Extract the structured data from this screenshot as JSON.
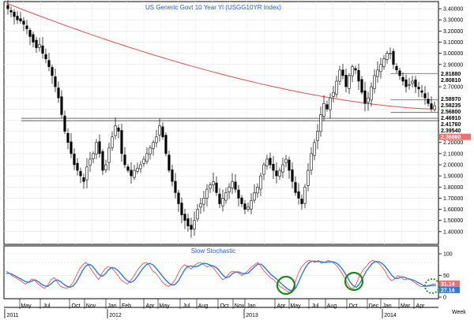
{
  "chart_data": [
    {
      "type": "candlestick",
      "title": "US Generic  Govt  10  Year  Yl  (USGG10YR Index)",
      "ylim": [
        1.3,
        3.45
      ],
      "y_ticks": [
        "3.40000",
        "3.30000",
        "3.20000",
        "3.10000",
        "3.00000",
        "2.90000",
        "2.80000",
        "2.70000",
        "2.60000",
        "2.50000",
        "2.40000",
        "2.30000",
        "2.20000",
        "2.10000",
        "2.00000",
        "1.90000",
        "1.80000",
        "1.70000",
        "1.60000",
        "1.50000",
        "1.40000"
      ],
      "price_tags": [
        {
          "label": "2.81880",
          "value": 2.8188,
          "color": "#ffffff",
          "text_color": "#000000"
        },
        {
          "label": "2.80810",
          "value": 2.8081,
          "color": "#ffffff",
          "text_color": "#000000"
        },
        {
          "label": "2.58970",
          "value": 2.5897,
          "color": "#ffffff",
          "text_color": "#000000"
        },
        {
          "label": "2.58235",
          "value": 2.58235,
          "color": "#ffffff",
          "text_color": "#000000"
        },
        {
          "label": "2.56800",
          "value": 2.568,
          "color": "#ffffff",
          "text_color": "#000000"
        },
        {
          "label": "2.46910",
          "value": 2.4691,
          "color": "#ffffff",
          "text_color": "#000000"
        },
        {
          "label": "2.41760",
          "value": 2.4176,
          "color": "#ffffff",
          "text_color": "#000000"
        },
        {
          "label": "2.39540",
          "value": 2.3954,
          "color": "#ffffff",
          "text_color": "#000000"
        },
        {
          "label": "2.36860",
          "value": 2.3686,
          "color": "#f07070",
          "text_color": "#ffffff"
        }
      ],
      "horizontal_lines": [
        {
          "value": 2.417,
          "x_start": 0.04,
          "x_end": 1.0
        },
        {
          "value": 2.395,
          "x_start": 0.04,
          "x_end": 1.0
        },
        {
          "value": 2.8188,
          "x_start": 0.89,
          "x_end": 1.0
        },
        {
          "value": 2.582,
          "x_start": 0.89,
          "x_end": 1.0
        },
        {
          "value": 2.469,
          "x_start": 0.89,
          "x_end": 1.0
        }
      ],
      "closes": [
        3.4,
        3.37,
        3.33,
        3.3,
        3.29,
        3.26,
        3.22,
        3.15,
        3.1,
        3.05,
        3.08,
        3.0,
        2.95,
        2.88,
        2.8,
        2.7,
        2.6,
        2.45,
        2.3,
        2.2,
        2.1,
        2.0,
        1.95,
        1.9,
        1.85,
        1.98,
        2.05,
        2.1,
        2.2,
        2.1,
        1.95,
        2.0,
        2.15,
        2.25,
        2.35,
        2.3,
        2.1,
        2.0,
        1.95,
        1.9,
        1.95,
        1.97,
        2.0,
        2.05,
        2.1,
        2.15,
        2.2,
        2.25,
        2.35,
        2.25,
        2.1,
        1.95,
        1.85,
        1.75,
        1.65,
        1.55,
        1.5,
        1.45,
        1.42,
        1.5,
        1.6,
        1.65,
        1.7,
        1.78,
        1.82,
        1.85,
        1.75,
        1.65,
        1.7,
        1.75,
        1.8,
        1.85,
        1.78,
        1.7,
        1.65,
        1.6,
        1.62,
        1.68,
        1.75,
        1.8,
        1.9,
        2.0,
        2.05,
        2.0,
        1.95,
        1.9,
        1.95,
        2.0,
        2.05,
        1.95,
        1.85,
        1.75,
        1.7,
        1.65,
        1.8,
        1.95,
        2.1,
        2.2,
        2.3,
        2.45,
        2.55,
        2.5,
        2.6,
        2.65,
        2.75,
        2.85,
        2.8,
        2.7,
        2.8,
        2.88,
        2.85,
        2.75,
        2.65,
        2.55,
        2.6,
        2.7,
        2.8,
        2.85,
        2.9,
        2.95,
        3.0,
        3.0,
        2.9,
        2.85,
        2.8,
        2.75,
        2.7,
        2.72,
        2.75,
        2.7,
        2.68,
        2.65,
        2.6,
        2.55,
        2.5,
        2.53
      ]
    },
    {
      "type": "line",
      "title": "Slow  Stochastic",
      "ylim": [
        0,
        100
      ],
      "y_ticks": [
        "100",
        "50",
        "0"
      ],
      "value_tags": [
        {
          "label": "31.14",
          "value": 31.14,
          "color": "#f07070"
        },
        {
          "label": "27.14",
          "value": 27.14,
          "color": "#2a7be0"
        }
      ],
      "series": [
        {
          "values": [
            60,
            55,
            48,
            45,
            40,
            35,
            30,
            35,
            42,
            38,
            30,
            25,
            20,
            28,
            40,
            45,
            35,
            25,
            22,
            20,
            25,
            35,
            50,
            65,
            75,
            80,
            72,
            60,
            50,
            40,
            55,
            65,
            70,
            68,
            60,
            50,
            40,
            35,
            30,
            38,
            48,
            60,
            70,
            78,
            80,
            72,
            60,
            55,
            45,
            35,
            28,
            25,
            30,
            40,
            55,
            68,
            75,
            70,
            65,
            72,
            78,
            80,
            75,
            70,
            72,
            68,
            58,
            48,
            40,
            45,
            55,
            60,
            58,
            55,
            50,
            55,
            62,
            70,
            75,
            80,
            70,
            60,
            52,
            45,
            40,
            32,
            25,
            20,
            15,
            10,
            20,
            40,
            60,
            72,
            80,
            85,
            83,
            80,
            85,
            78,
            80,
            85,
            82,
            78,
            70,
            60,
            48,
            35,
            22,
            20,
            32,
            50,
            62,
            70,
            80,
            85,
            82,
            78,
            70,
            60,
            45,
            38,
            42,
            50,
            45,
            40,
            42,
            40,
            35,
            30,
            25,
            24,
            26,
            28,
            30,
            31
          ]
        },
        {
          "values": [
            55,
            55,
            52,
            48,
            44,
            40,
            36,
            34,
            37,
            40,
            36,
            30,
            26,
            25,
            30,
            37,
            40,
            36,
            30,
            25,
            23,
            26,
            35,
            48,
            62,
            72,
            76,
            72,
            63,
            53,
            48,
            53,
            62,
            68,
            67,
            62,
            54,
            45,
            38,
            34,
            37,
            46,
            57,
            67,
            75,
            78,
            75,
            67,
            58,
            49,
            40,
            33,
            28,
            29,
            37,
            50,
            63,
            71,
            72,
            70,
            71,
            75,
            78,
            77,
            74,
            72,
            68,
            60,
            51,
            45,
            47,
            54,
            58,
            58,
            55,
            54,
            56,
            63,
            70,
            76,
            76,
            70,
            61,
            53,
            47,
            41,
            34,
            27,
            21,
            16,
            14,
            22,
            38,
            55,
            69,
            79,
            83,
            83,
            82,
            82,
            80,
            81,
            82,
            81,
            77,
            70,
            60,
            48,
            35,
            26,
            23,
            31,
            45,
            59,
            69,
            78,
            82,
            82,
            78,
            71,
            61,
            51,
            44,
            43,
            47,
            46,
            43,
            41,
            39,
            35,
            31,
            27,
            25,
            26,
            27,
            27
          ]
        }
      ]
    }
  ],
  "x_axis": {
    "months": [
      "May",
      "Jul",
      "Oct",
      "Nov",
      "Jan",
      "Feb",
      "Apr",
      "May",
      "Jul",
      "Aug",
      "Oct",
      "Nov",
      "Jan",
      "Apr",
      "May",
      "Jul",
      "Aug",
      "Oct",
      "Dec",
      "Jan",
      "Mar",
      "Apr"
    ],
    "years": [
      "2011",
      "2012",
      "2013",
      "2014"
    ],
    "period_label": "Week"
  }
}
